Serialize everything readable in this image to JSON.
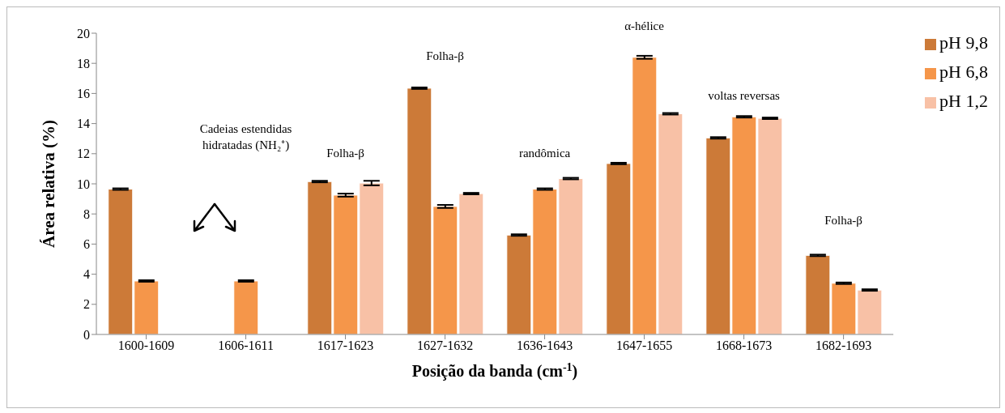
{
  "chart_data": {
    "type": "bar",
    "xlabel": "Posição da banda (cm$^{-1}$)",
    "ylabel": "Área relativa (%)",
    "categories": [
      "1600-1609",
      "1606-1611",
      "1617-1623",
      "1627-1632",
      "1636-1643",
      "1647-1655",
      "1668-1673",
      "1682-1693"
    ],
    "series": [
      {
        "name": "pH 9,8",
        "color": "#cc7a38",
        "values": [
          9.65,
          null,
          10.15,
          16.35,
          6.6,
          11.35,
          13.05,
          5.25
        ],
        "errors": [
          0.05,
          null,
          0.05,
          0.05,
          0.05,
          0.05,
          0.05,
          0.05
        ]
      },
      {
        "name": "pH 6,8",
        "color": "#f5964a",
        "values": [
          3.55,
          3.55,
          9.25,
          8.5,
          9.65,
          18.4,
          14.45,
          3.4
        ],
        "errors": [
          0.05,
          0.05,
          0.1,
          0.1,
          0.05,
          0.1,
          0.05,
          0.05
        ]
      },
      {
        "name": "pH 1,2",
        "color": "#f8c1a6",
        "values": [
          null,
          null,
          10.05,
          9.35,
          10.35,
          14.65,
          14.35,
          2.95
        ],
        "errors": [
          null,
          null,
          0.15,
          0.05,
          0.05,
          0.05,
          0.05,
          0.05
        ]
      }
    ],
    "ylim": [
      0,
      20
    ],
    "yticks": [
      0,
      2,
      4,
      6,
      8,
      10,
      12,
      14,
      16,
      18,
      20
    ],
    "legend": "top right",
    "grid": false,
    "annotations": [
      "Cadeias estendidas hidratadas (NH₂⁺)",
      "Folha-β",
      "Folha-β",
      "randômica",
      "α-hélice",
      "voltas reversas",
      "Folha-β"
    ]
  }
}
